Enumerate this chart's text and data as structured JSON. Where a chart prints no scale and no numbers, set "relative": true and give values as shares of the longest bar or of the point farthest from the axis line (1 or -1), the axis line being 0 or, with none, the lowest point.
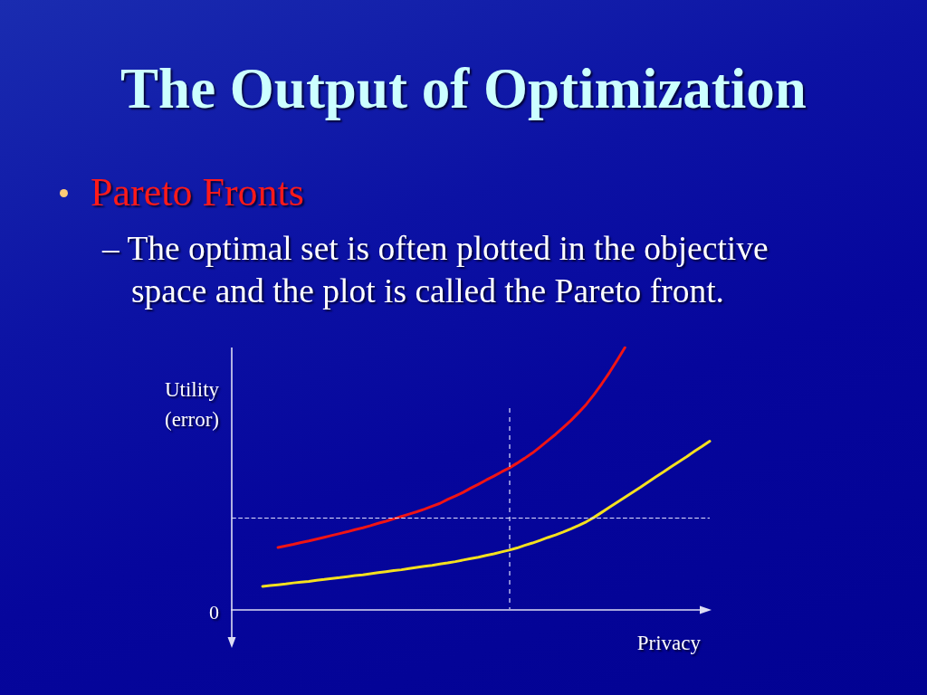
{
  "chart_data": {
    "type": "line",
    "title": "The Output of Optimization",
    "subtitle": "Pareto Fronts",
    "annotations": [
      "– The optimal set is often plotted in the objective space and the plot is called the Pareto front.",
      "0"
    ],
    "xlabel": "Privacy",
    "ylabel": "Utility\n(error)",
    "relative": true,
    "categories": [
      null,
      null,
      null,
      null,
      null,
      null,
      null,
      null,
      null,
      null,
      null,
      null,
      null,
      null,
      null,
      null,
      null,
      null,
      null,
      null,
      null,
      null,
      null,
      null,
      null,
      null,
      null,
      null,
      null,
      null,
      null,
      null,
      null,
      null,
      null,
      null,
      null,
      null,
      null,
      null,
      null,
      null,
      null,
      null,
      null,
      null,
      null,
      null,
      null,
      null,
      null,
      null,
      null,
      null,
      null,
      null,
      null,
      null,
      null,
      null,
      null,
      null,
      null
    ],
    "series": [
      {
        "color": "#f01414",
        "values": [
          null,
          null,
          null,
          null,
          null,
          null,
          0.238,
          0.244,
          0.25,
          0.257,
          0.263,
          0.27,
          0.277,
          0.284,
          0.291,
          0.298,
          0.306,
          0.313,
          0.321,
          0.33,
          0.338,
          0.347,
          0.356,
          0.365,
          0.374,
          0.384,
          0.395,
          0.406,
          0.421,
          0.434,
          0.448,
          0.464,
          0.479,
          0.495,
          0.51,
          0.526,
          0.541,
          0.559,
          0.578,
          0.598,
          0.621,
          0.645,
          0.669,
          0.695,
          0.722,
          0.752,
          0.784,
          0.821,
          0.862,
          0.905,
          0.952,
          1,
          null,
          null,
          null,
          null,
          null,
          null,
          null,
          null,
          null,
          null,
          null
        ]
      },
      {
        "color": "#f5e11e",
        "values": [
          null,
          null,
          null,
          null,
          0.09,
          0.093,
          0.096,
          0.099,
          0.103,
          0.106,
          0.109,
          0.113,
          0.116,
          0.12,
          0.123,
          0.127,
          0.131,
          0.134,
          0.138,
          0.142,
          0.146,
          0.15,
          0.153,
          0.158,
          0.162,
          0.166,
          0.17,
          0.175,
          0.179,
          0.184,
          0.19,
          0.196,
          0.201,
          0.208,
          0.214,
          0.221,
          0.228,
          0.236,
          0.246,
          0.255,
          0.265,
          0.276,
          0.286,
          0.297,
          0.309,
          0.322,
          0.336,
          0.353,
          0.372,
          0.391,
          0.41,
          0.429,
          0.448,
          0.467,
          0.487,
          0.507,
          0.526,
          0.546,
          0.565,
          0.584,
          0.604,
          0.623,
          0.643
        ]
      }
    ],
    "ref_lines": [
      {
        "axis": "y",
        "value": 0.355,
        "color": "#e0e0ff",
        "line_style": "dashed"
      }
    ]
  }
}
